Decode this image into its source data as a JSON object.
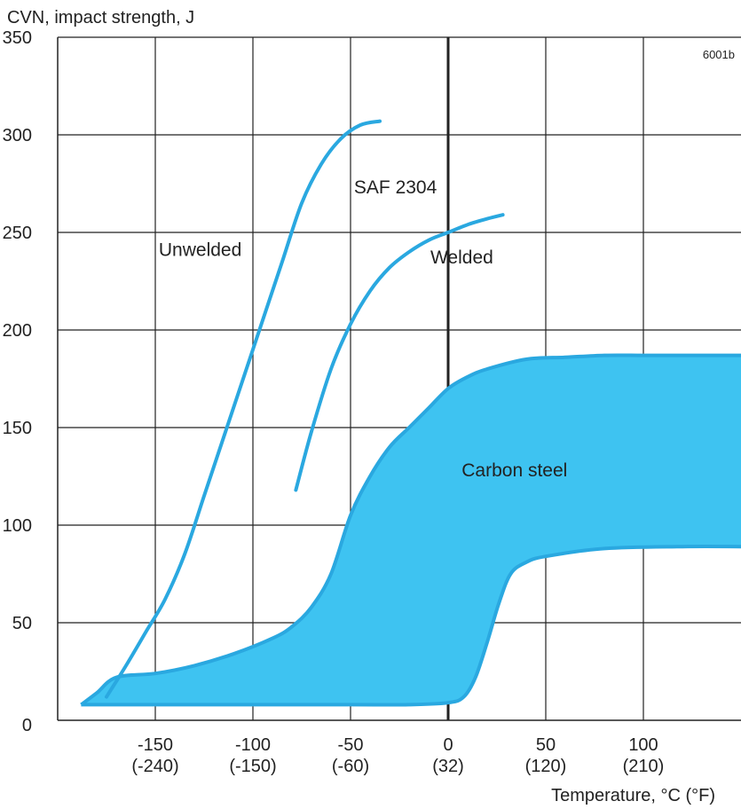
{
  "chart_data": {
    "type": "area",
    "ylabel": "CVN, impact strength, J",
    "xlabel": "Temperature, °C (°F)",
    "figure_code": "6001b",
    "xlim": [
      -200,
      150
    ],
    "ylim": [
      0,
      350
    ],
    "grid": true,
    "x_ticks": [
      {
        "c": -150,
        "label": "-150",
        "sub": "(-240)"
      },
      {
        "c": -100,
        "label": "-100",
        "sub": "(-150)"
      },
      {
        "c": -50,
        "label": "-50",
        "sub": "(-60)"
      },
      {
        "c": 0,
        "label": "0",
        "sub": "(32)"
      },
      {
        "c": 50,
        "label": "50",
        "sub": "(120)"
      },
      {
        "c": 100,
        "label": "100",
        "sub": "(210)"
      }
    ],
    "y_ticks": [
      {
        "v": 0,
        "label": "0"
      },
      {
        "v": 50,
        "label": "50"
      },
      {
        "v": 100,
        "label": "100"
      },
      {
        "v": 150,
        "label": "150"
      },
      {
        "v": 200,
        "label": "200"
      },
      {
        "v": 250,
        "label": "250"
      },
      {
        "v": 300,
        "label": "300"
      },
      {
        "v": 350,
        "label": "350"
      }
    ],
    "series": [
      {
        "name": "Unwelded",
        "x": [
          -175,
          -165,
          -155,
          -145,
          -135,
          -125,
          -115,
          -105,
          -95,
          -85,
          -75,
          -65,
          -55,
          -45,
          -35
        ],
        "y": [
          12,
          28,
          45,
          62,
          85,
          115,
          145,
          175,
          205,
          235,
          265,
          285,
          298,
          305,
          307
        ]
      },
      {
        "name": "Welded",
        "x": [
          -78,
          -70,
          -60,
          -50,
          -40,
          -30,
          -20,
          -10,
          0,
          10,
          20,
          28
        ],
        "y": [
          118,
          148,
          180,
          203,
          220,
          232,
          240,
          246,
          250,
          254,
          257,
          259
        ]
      }
    ],
    "band": {
      "name": "Carbon steel",
      "upper": {
        "x": [
          -188,
          -180,
          -170,
          -150,
          -130,
          -110,
          -90,
          -80,
          -70,
          -60,
          -50,
          -40,
          -30,
          -20,
          -10,
          0,
          10,
          20,
          40,
          60,
          80,
          100,
          120,
          150
        ],
        "y": [
          8,
          14,
          22,
          24,
          28,
          34,
          42,
          48,
          58,
          75,
          105,
          125,
          140,
          150,
          160,
          170,
          176,
          180,
          185,
          186,
          187,
          187,
          187,
          187
        ]
      },
      "lower": {
        "x": [
          -188,
          -150,
          -100,
          -50,
          -20,
          0,
          8,
          14,
          20,
          26,
          32,
          40,
          50,
          80,
          120,
          150
        ],
        "y": [
          8,
          8,
          8,
          8,
          8,
          9,
          12,
          22,
          40,
          60,
          75,
          81,
          84,
          88,
          89,
          89
        ]
      }
    },
    "annotations": [
      {
        "text": "SAF 2304",
        "x": -27,
        "y": 270
      },
      {
        "text": "Unwelded",
        "x": -127,
        "y": 238
      },
      {
        "text": "Welded",
        "x": 7,
        "y": 234
      },
      {
        "text": "Carbon steel",
        "x": 34,
        "y": 125
      }
    ],
    "colors": {
      "line": "#2aa8e0",
      "fill": "#3ec3f1",
      "grid": "#222222"
    }
  }
}
